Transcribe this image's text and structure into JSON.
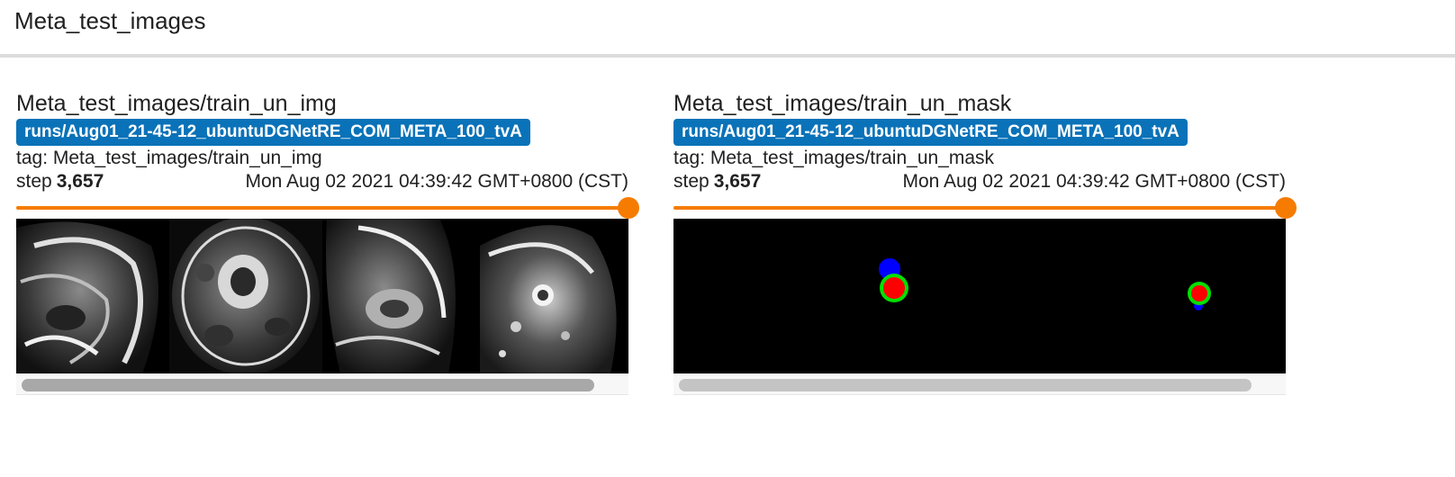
{
  "section": {
    "title": "Meta_test_images"
  },
  "cards": [
    {
      "title": "Meta_test_images/train_un_img",
      "run": "runs/Aug01_21-45-12_ubuntuDGNetRE_COM_META_100_tvA",
      "tag": "tag: Meta_test_images/train_un_img",
      "step_label": "step",
      "step_value": "3,657",
      "timestamp": "Mon Aug 02 2021 04:39:42 GMT+0800 (CST)",
      "slider_fraction": 1.0
    },
    {
      "title": "Meta_test_images/train_un_mask",
      "run": "runs/Aug01_21-45-12_ubuntuDGNetRE_COM_META_100_tvA",
      "tag": "tag: Meta_test_images/train_un_mask",
      "step_label": "step",
      "step_value": "3,657",
      "timestamp": "Mon Aug 02 2021 04:39:42 GMT+0800 (CST)",
      "slider_fraction": 1.0
    }
  ],
  "colors": {
    "run_chip": "#0a72b8",
    "slider": "#f57c00",
    "mask_blue": "#0000ff",
    "mask_green": "#00e000",
    "mask_red": "#ff0000"
  }
}
